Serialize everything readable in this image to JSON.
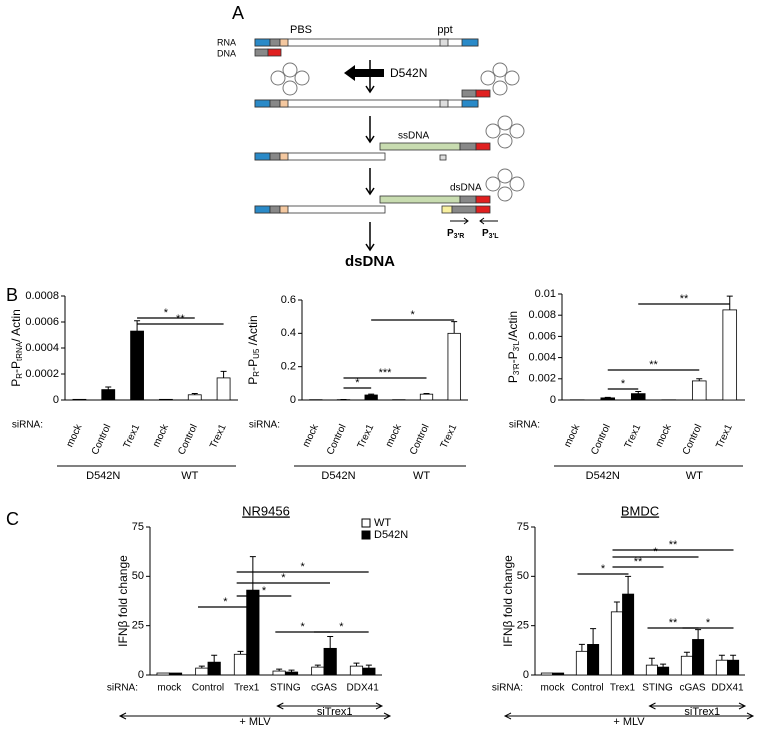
{
  "panel_labels": [
    "B",
    "C"
  ],
  "diagram": {
    "label": "A",
    "pbs": "PBS",
    "ppt": "ppt",
    "rna": "RNA",
    "dna": "DNA",
    "mutant": "D542N",
    "ssdna": "ssDNA",
    "dsdna": "dsDNA",
    "primer_r": [
      "P",
      "3'R"
    ],
    "primer_l": [
      "P",
      "3'L"
    ],
    "product": "dsDNA"
  },
  "chart_data": [
    {
      "type": "bar",
      "ylabel_parts": [
        "P",
        "R",
        "-P",
        "tRNA",
        "/ Actin"
      ],
      "row_label": "siRNA:",
      "categories": [
        "mock",
        "Control",
        "Trex1",
        "mock",
        "Control",
        "Trex1"
      ],
      "series": [
        {
          "colors": [
            "#000000",
            "#000000",
            "#000000",
            "#ffffff",
            "#ffffff",
            "#ffffff"
          ],
          "values": [
            5e-06,
            8e-05,
            0.00053,
            5e-06,
            4e-05,
            0.00017
          ],
          "errors": [
            0,
            2e-05,
            8e-05,
            0,
            1e-05,
            5e-05
          ]
        }
      ],
      "ylim": [
        0,
        0.0008
      ],
      "yticks": [
        0,
        0.0002,
        0.0004,
        0.0006,
        0.0008
      ],
      "groups": [
        {
          "label": "D542N",
          "from": 0,
          "to": 2
        },
        {
          "label": "WT",
          "from": 3,
          "to": 5
        }
      ],
      "annotations": [
        {
          "text": "*",
          "from": 2,
          "to": 4
        },
        {
          "text": "**",
          "from": 2,
          "to": 5
        }
      ]
    },
    {
      "type": "bar",
      "ylabel_parts": [
        "P",
        "R",
        "-P",
        "U5",
        " /Actin"
      ],
      "row_label": "siRNA:",
      "categories": [
        "mock",
        "Control",
        "Trex1",
        "mock",
        "Control",
        "Trex1"
      ],
      "series": [
        {
          "colors": [
            "#000000",
            "#000000",
            "#000000",
            "#ffffff",
            "#ffffff",
            "#ffffff"
          ],
          "values": [
            0.002,
            0.002,
            0.03,
            0.002,
            0.035,
            0.4
          ],
          "errors": [
            0,
            0.001,
            0.005,
            0,
            0.004,
            0.07
          ]
        }
      ],
      "ylim": [
        0,
        0.6
      ],
      "yticks": [
        0,
        0.2,
        0.4,
        0.6
      ],
      "groups": [
        {
          "label": "D542N",
          "from": 0,
          "to": 2
        },
        {
          "label": "WT",
          "from": 3,
          "to": 5
        }
      ],
      "annotations": [
        {
          "text": "*",
          "from": 1,
          "to": 2
        },
        {
          "text": "***",
          "from": 1,
          "to": 4
        },
        {
          "text": "*",
          "from": 2,
          "to": 5
        }
      ]
    },
    {
      "type": "bar",
      "ylabel_parts": [
        "P",
        "3'R",
        "-P",
        "3'L",
        "/Actin"
      ],
      "row_label": "siRNA:",
      "categories": [
        "mock",
        "Control",
        "Trex1",
        "mock",
        "Control",
        "Trex1"
      ],
      "series": [
        {
          "colors": [
            "#000000",
            "#000000",
            "#000000",
            "#ffffff",
            "#ffffff",
            "#ffffff"
          ],
          "values": [
            2e-05,
            0.0002,
            0.0006,
            2e-05,
            0.0018,
            0.0085
          ],
          "errors": [
            0,
            5e-05,
            0.0002,
            0,
            0.0002,
            0.0013
          ]
        }
      ],
      "ylim": [
        0,
        0.01
      ],
      "yticks": [
        0,
        0.002,
        0.004,
        0.006,
        0.008,
        0.01
      ],
      "groups": [
        {
          "label": "D542N",
          "from": 0,
          "to": 2
        },
        {
          "label": "WT",
          "from": 3,
          "to": 5
        }
      ],
      "annotations": [
        {
          "text": "*",
          "from": 1,
          "to": 2
        },
        {
          "text": "**",
          "from": 1,
          "to": 4
        },
        {
          "text": "**",
          "from": 2,
          "to": 5
        }
      ]
    },
    {
      "type": "bar",
      "title": "NR9456",
      "ylabel_parts": [
        "IFNβ fold change"
      ],
      "row_label": "siRNA:",
      "categories": [
        "mock",
        "Control",
        "Trex1",
        "STING",
        "cGAS",
        "DDX41"
      ],
      "series": [
        {
          "name": "WT",
          "color": "#ffffff",
          "values": [
            1,
            3.5,
            10.5,
            2,
            4,
            4.5
          ],
          "errors": [
            0,
            1,
            1.5,
            1,
            1,
            1.5
          ]
        },
        {
          "name": "D542N",
          "color": "#000000",
          "values": [
            1,
            6.5,
            43,
            1.5,
            13.5,
            3.5
          ],
          "errors": [
            0,
            3.5,
            17,
            1,
            6,
            1.5
          ]
        }
      ],
      "ylim": [
        0,
        75
      ],
      "yticks": [
        0,
        25,
        50,
        75
      ],
      "legend": "upper right",
      "groups": [
        {
          "label": "siTrex1",
          "from": 3,
          "to": 5
        },
        {
          "label": "+ MLV",
          "from": 0,
          "to": 5
        }
      ],
      "annotations": [
        {
          "text": "*",
          "from": 1,
          "to": 2
        },
        {
          "text": "*",
          "from": 2,
          "to": 3
        },
        {
          "text": "*",
          "from": 2,
          "to": 4
        },
        {
          "text": "*",
          "from": 2,
          "to": 5
        },
        {
          "text": "*",
          "from": 3,
          "to": 4
        },
        {
          "text": "*",
          "from": 4,
          "to": 5
        }
      ]
    },
    {
      "type": "bar",
      "title": "BMDC",
      "ylabel_parts": [
        "IFNβ fold change"
      ],
      "row_label": "siRNA:",
      "categories": [
        "mock",
        "Control",
        "Trex1",
        "STING",
        "cGAS",
        "DDX41"
      ],
      "series": [
        {
          "name": "WT",
          "color": "#ffffff",
          "values": [
            1,
            12,
            32,
            5,
            9.5,
            7.5
          ],
          "errors": [
            0,
            3.5,
            5,
            3.5,
            2,
            2.5
          ]
        },
        {
          "name": "D542N",
          "color": "#000000",
          "values": [
            1,
            15.5,
            41,
            4,
            18,
            7.5
          ],
          "errors": [
            0,
            8,
            9,
            1.5,
            5,
            2.5
          ]
        }
      ],
      "ylim": [
        0,
        75
      ],
      "yticks": [
        0,
        25,
        50,
        75
      ],
      "groups": [
        {
          "label": "siTrex1",
          "from": 3,
          "to": 5
        },
        {
          "label": "+ MLV",
          "from": 0,
          "to": 5
        }
      ],
      "annotations": [
        {
          "text": "*",
          "from": 1,
          "to": 2
        },
        {
          "text": "**",
          "from": 2,
          "to": 3
        },
        {
          "text": "*",
          "from": 2,
          "to": 4
        },
        {
          "text": "**",
          "from": 2,
          "to": 5
        },
        {
          "text": "**",
          "from": 3,
          "to": 4
        },
        {
          "text": "*",
          "from": 4,
          "to": 5
        }
      ]
    }
  ]
}
